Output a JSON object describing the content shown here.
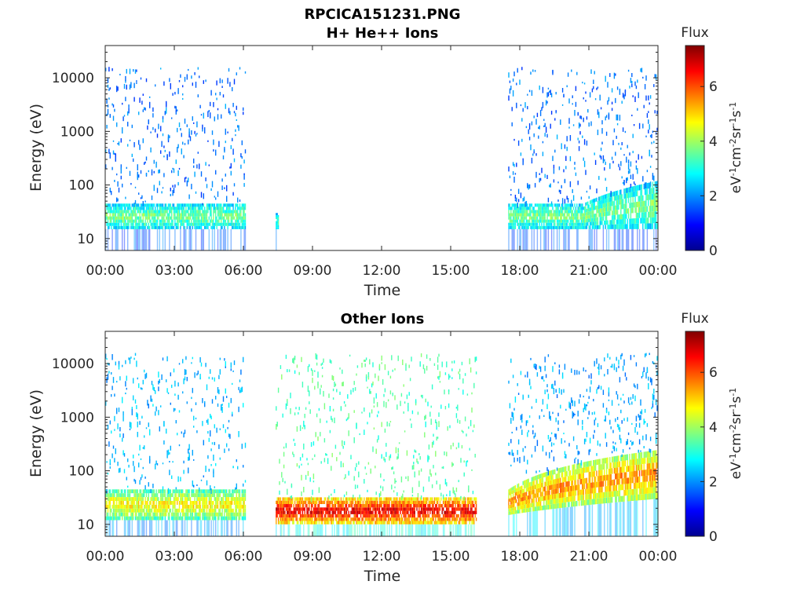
{
  "figure_title": "RPCICA151231.PNG",
  "chart_data": [
    {
      "type": "heatmap",
      "title": "H+ He++ Ions",
      "xlabel": "Time",
      "ylabel": "Energy (eV)",
      "x_ticks": [
        "00:00",
        "03:00",
        "06:00",
        "09:00",
        "12:00",
        "15:00",
        "18:00",
        "21:00",
        "00:00"
      ],
      "xlim_hours": [
        0,
        24
      ],
      "y_scale": "log",
      "y_ticks": [
        10,
        100,
        1000,
        10000
      ],
      "y_tick_labels": [
        "10",
        "100",
        "1000",
        "10000"
      ],
      "ylim": [
        6,
        40000
      ],
      "colorbar": {
        "title": "Flux",
        "unit_label": "eV-1cm-2sr-1s-1",
        "range": [
          0,
          7.5
        ],
        "ticks": [
          0,
          2,
          4,
          6
        ],
        "tick_labels": [
          "0",
          "2",
          "4",
          "6"
        ],
        "colormap": "jet"
      },
      "regions": [
        {
          "t_start_h": 0.0,
          "t_end_h": 6.1,
          "description": "scattered low-flux counts across all energies",
          "band": {
            "e_low": 15,
            "e_high": 45,
            "flux": 3.6
          },
          "background_flux": 1.8
        },
        {
          "t_start_h": 7.4,
          "t_end_h": 7.5,
          "description": "brief narrow burst near 20 eV",
          "band": {
            "e_low": 15,
            "e_high": 30,
            "flux": 3.2
          },
          "background_flux": 0
        },
        {
          "t_start_h": 17.5,
          "t_end_h": 24.0,
          "description": "scattered counts with rising low-energy band",
          "band": {
            "e_low": 15,
            "e_high": 60,
            "flux": 3.6
          },
          "background_flux": 1.8
        }
      ],
      "grid": false
    },
    {
      "type": "heatmap",
      "title": "Other Ions",
      "xlabel": "Time",
      "ylabel": "Energy (eV)",
      "x_ticks": [
        "00:00",
        "03:00",
        "06:00",
        "09:00",
        "12:00",
        "15:00",
        "18:00",
        "21:00",
        "00:00"
      ],
      "xlim_hours": [
        0,
        24
      ],
      "y_scale": "log",
      "y_ticks": [
        10,
        100,
        1000,
        10000
      ],
      "y_tick_labels": [
        "10",
        "100",
        "1000",
        "10000"
      ],
      "ylim": [
        6,
        40000
      ],
      "colorbar": {
        "title": "Flux",
        "unit_label": "eV-1cm-2sr-1s-1",
        "range": [
          0,
          7.5
        ],
        "ticks": [
          0,
          2,
          4,
          6
        ],
        "tick_labels": [
          "0",
          "2",
          "4",
          "6"
        ],
        "colormap": "jet"
      },
      "regions": [
        {
          "t_start_h": 0.0,
          "t_end_h": 6.1,
          "description": "moderate band 12-45 eV with sparse higher-energy counts",
          "band": {
            "e_low": 12,
            "e_high": 45,
            "flux": 4.6
          },
          "background_flux": 2.3
        },
        {
          "t_start_h": 7.4,
          "t_end_h": 16.1,
          "description": "intense narrow band near 15-30 eV",
          "band": {
            "e_low": 10,
            "e_high": 32,
            "flux": 6.6
          },
          "background_flux": 3.4
        },
        {
          "t_start_h": 17.5,
          "t_end_h": 24.0,
          "description": "band rising from ~25 eV to ~150 eV with increasing flux",
          "band": {
            "e_low": 15,
            "e_high": 150,
            "flux": 5.4
          },
          "background_flux": 2.2
        }
      ],
      "grid": false
    }
  ]
}
